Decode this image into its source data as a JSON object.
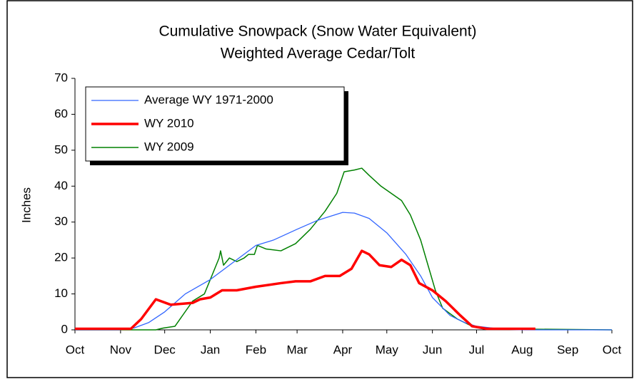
{
  "chart_data": {
    "type": "line",
    "title": "Cumulative Snowpack (Snow Water Equivalent)",
    "subtitle": "Weighted Average Cedar/Tolt",
    "y_label": "Inches",
    "xlim": [
      0,
      365
    ],
    "xticks": [
      {
        "value": 0,
        "label": "Oct"
      },
      {
        "value": 31,
        "label": "Nov"
      },
      {
        "value": 61,
        "label": "Dec"
      },
      {
        "value": 92,
        "label": "Jan"
      },
      {
        "value": 123,
        "label": "Feb"
      },
      {
        "value": 151,
        "label": "Mar"
      },
      {
        "value": 182,
        "label": "Apr"
      },
      {
        "value": 212,
        "label": "May"
      },
      {
        "value": 243,
        "label": "Jun"
      },
      {
        "value": 273,
        "label": "Jul"
      },
      {
        "value": 304,
        "label": "Aug"
      },
      {
        "value": 335,
        "label": "Sep"
      },
      {
        "value": 365,
        "label": "Oct"
      }
    ],
    "ylim": [
      0,
      70
    ],
    "yticks": [
      0,
      10,
      20,
      30,
      40,
      50,
      60,
      70
    ],
    "legend": "upper left",
    "series": [
      {
        "name": "Average WY 1971-2000",
        "color": "#3366ff",
        "width": 1.3,
        "x": [
          0,
          30,
          40,
          50,
          61,
          75,
          92,
          105,
          123,
          135,
          151,
          165,
          182,
          190,
          200,
          212,
          225,
          235,
          243,
          255,
          265,
          273,
          290,
          304,
          365
        ],
        "values": [
          0,
          0,
          0.5,
          2,
          5,
          10,
          14,
          18,
          23.5,
          25,
          28,
          30.5,
          32.7,
          32.5,
          31,
          27,
          21,
          15,
          9,
          4,
          2,
          1,
          0.2,
          0,
          0
        ]
      },
      {
        "name": "WY 2010",
        "color": "#ff0000",
        "width": 3.5,
        "x": [
          0,
          38,
          45,
          55,
          65,
          80,
          85,
          92,
          100,
          110,
          123,
          140,
          150,
          160,
          170,
          180,
          188,
          195,
          200,
          207,
          215,
          222,
          228,
          234,
          243,
          252,
          262,
          270,
          280,
          313
        ],
        "values": [
          0.3,
          0.3,
          3,
          8.5,
          7,
          7.5,
          8.5,
          9,
          11,
          11,
          12,
          13,
          13.5,
          13.5,
          15,
          15,
          17,
          22,
          21,
          18,
          17.5,
          19.5,
          18,
          13,
          11,
          8,
          4,
          1,
          0.3,
          0.3
        ]
      },
      {
        "name": "WY 2009",
        "color": "#008000",
        "width": 1.5,
        "x": [
          0,
          55,
          60,
          68,
          80,
          88,
          93,
          98,
          99,
          101,
          105,
          110,
          115,
          118,
          122,
          124,
          130,
          140,
          150,
          160,
          170,
          178,
          183,
          190,
          195,
          200,
          208,
          215,
          222,
          228,
          235,
          240,
          245,
          250,
          260,
          270,
          280,
          365
        ],
        "values": [
          0,
          0,
          0.5,
          1,
          8,
          10,
          15,
          20,
          22,
          18,
          20,
          19,
          20,
          21,
          21,
          23.5,
          22.5,
          22,
          24,
          28,
          33,
          38,
          44,
          44.5,
          45,
          43,
          40,
          38,
          36,
          32,
          25,
          18,
          11,
          6,
          3,
          1,
          0.3,
          0
        ]
      }
    ]
  }
}
